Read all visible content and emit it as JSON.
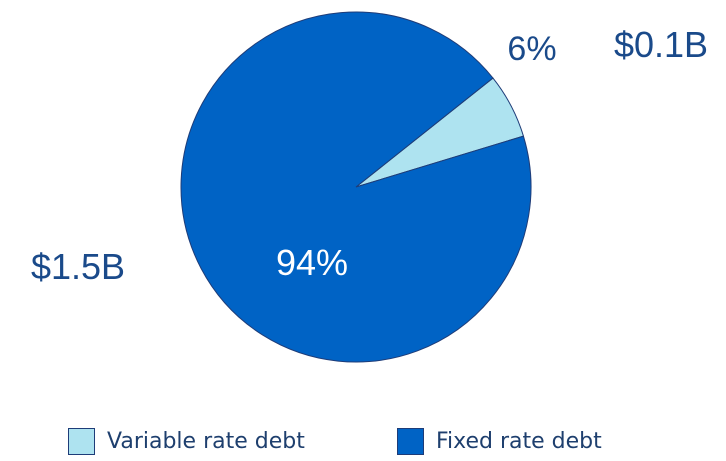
{
  "chart_data": {
    "type": "pie",
    "series": [
      {
        "name": "Variable rate debt",
        "value": 6,
        "percent_label": "6%",
        "amount_label": "$0.1B",
        "color": "#aee3f0"
      },
      {
        "name": "Fixed rate debt",
        "value": 94,
        "percent_label": "94%",
        "amount_label": "$1.5B",
        "color": "#0063c5"
      }
    ],
    "legend": {
      "position": "bottom",
      "entries": [
        "Variable rate debt",
        "Fixed rate debt"
      ]
    },
    "text_colors": {
      "percent": "#ffffff",
      "amount": "#1a4a8a",
      "small_percent": "#1a4a8a"
    },
    "edge_color": "#1e3c78"
  }
}
